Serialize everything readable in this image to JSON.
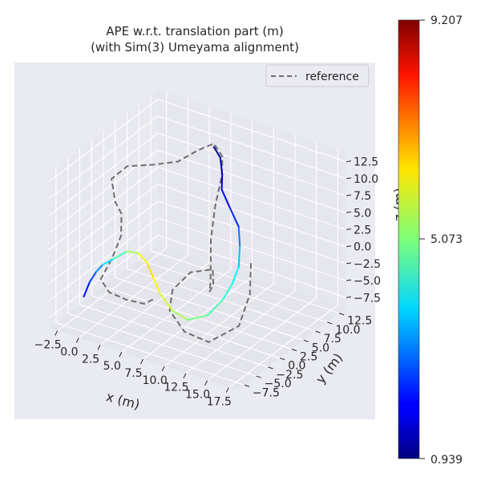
{
  "chart_data": {
    "type": "line",
    "projection": "3d",
    "title": "APE w.r.t. translation part (m)\n(with Sim(3) Umeyama alignment)",
    "title_lines": [
      "APE w.r.t. translation part (m)",
      "(with Sim(3) Umeyama alignment)"
    ],
    "xlabel": "x (m)",
    "ylabel": "y (m)",
    "zlabel": "z (m)",
    "xticks": [
      "−2.5",
      "0.0",
      "2.5",
      "5.0",
      "7.5",
      "10.0",
      "12.5",
      "15.0",
      "17.5"
    ],
    "yticks": [
      "−7.5",
      "−5.0",
      "−2.5",
      "0.0",
      "2.5",
      "5.0",
      "7.5",
      "10.0",
      "12.5"
    ],
    "zticks": [
      "−7.5",
      "−5.0",
      "−2.5",
      "0.0",
      "2.5",
      "5.0",
      "7.5",
      "10.0",
      "12.5"
    ],
    "grid": true,
    "legend": {
      "placement": "top-right",
      "entries": [
        "reference"
      ]
    },
    "colorbar": {
      "colormap": "jet",
      "min_label": "0.939",
      "mid_label": "5.073",
      "max_label": "9.207",
      "min": 0.939,
      "mid": 5.073,
      "max": 9.207
    },
    "reference_color": "#6e6e6e",
    "background_color": "#eaeaf2",
    "series": [
      {
        "name": "reference",
        "style": "dashed",
        "points": [
          [
            11.8,
            6.0,
            -1.0
          ],
          [
            12.5,
            4.5,
            -4.5
          ],
          [
            12.6,
            2.0,
            -7.8
          ],
          [
            11.0,
            -1.5,
            -9.0
          ],
          [
            9.0,
            -3.0,
            -7.5
          ],
          [
            7.0,
            -2.5,
            -5.5
          ],
          [
            6.5,
            -1.0,
            -3.5
          ],
          [
            7.5,
            1.0,
            -1.5
          ],
          [
            9.0,
            3.0,
            -1.5
          ],
          [
            8.5,
            4.0,
            -4.5
          ],
          [
            7.5,
            5.0,
            -6.5
          ],
          [
            6.8,
            6.5,
            -6.0
          ],
          [
            6.0,
            8.0,
            -1.0
          ],
          [
            6.5,
            8.0,
            4.0
          ],
          [
            7.0,
            8.5,
            8.5
          ],
          [
            6.8,
            9.0,
            11.0
          ],
          [
            5.8,
            9.0,
            12.5
          ],
          [
            4.5,
            8.0,
            11.5
          ],
          [
            3.0,
            6.5,
            10.0
          ],
          [
            1.0,
            5.0,
            9.5
          ],
          [
            -1.0,
            3.0,
            9.5
          ],
          [
            -2.0,
            1.5,
            8.0
          ],
          [
            -1.0,
            0.5,
            5.5
          ],
          [
            0.0,
            0.0,
            4.5
          ],
          [
            0.5,
            -1.0,
            2.0
          ],
          [
            0.0,
            -2.0,
            -1.0
          ],
          [
            -0.5,
            -3.5,
            -3.5
          ],
          [
            0.5,
            -3.5,
            -5.0
          ],
          [
            2.0,
            -2.5,
            -6.0
          ],
          [
            3.5,
            -1.5,
            -6.5
          ],
          [
            4.5,
            -1.0,
            -5.5
          ]
        ]
      },
      {
        "name": "",
        "style": "error-colored",
        "points": [
          [
            -2.2,
            -4.0,
            -6.5,
            1.8
          ],
          [
            -1.8,
            -3.5,
            -4.5,
            2.3
          ],
          [
            -1.3,
            -3.0,
            -3.0,
            2.8
          ],
          [
            -0.8,
            -2.5,
            -2.0,
            3.5
          ],
          [
            0.2,
            -2.0,
            -1.0,
            4.2
          ],
          [
            1.2,
            -1.0,
            0.0,
            5.0
          ],
          [
            2.0,
            0.0,
            -0.5,
            5.7
          ],
          [
            3.0,
            0.0,
            -1.5,
            6.4
          ],
          [
            4.0,
            -0.5,
            -3.0,
            6.3
          ],
          [
            5.0,
            -1.0,
            -4.5,
            6.0
          ],
          [
            6.5,
            -1.0,
            -6.5,
            5.6
          ],
          [
            8.0,
            -0.5,
            -7.5,
            5.2
          ],
          [
            9.5,
            1.0,
            -7.0,
            4.8
          ],
          [
            10.5,
            2.5,
            -5.0,
            4.5
          ],
          [
            11.0,
            3.5,
            -3.0,
            4.2
          ],
          [
            11.2,
            4.5,
            -1.0,
            3.8
          ],
          [
            10.5,
            6.0,
            1.0,
            3.3
          ],
          [
            9.8,
            7.0,
            3.0,
            2.6
          ],
          [
            8.5,
            7.5,
            5.0,
            2.0
          ],
          [
            7.0,
            8.5,
            6.5,
            1.6
          ],
          [
            6.5,
            9.5,
            8.0,
            1.4
          ],
          [
            6.0,
            10.0,
            10.0,
            1.2
          ],
          [
            5.8,
            9.0,
            12.0,
            0.95
          ]
        ]
      }
    ]
  }
}
